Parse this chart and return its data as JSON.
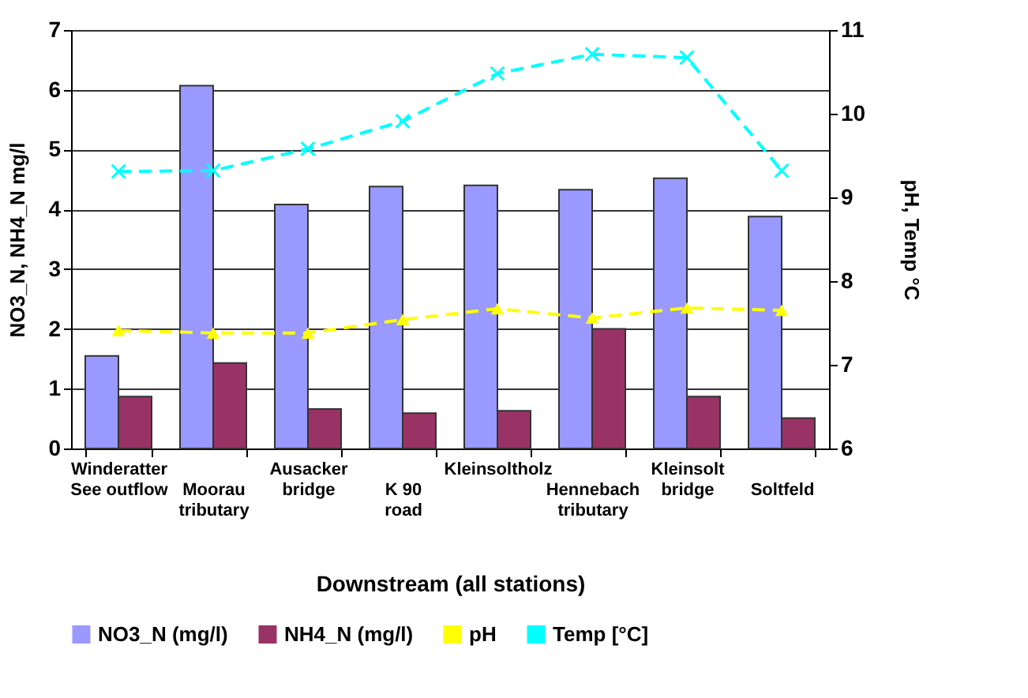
{
  "chart_data": {
    "type": "bar",
    "xlabel": "Downstream (all stations)",
    "ylabel": "NO3_N, NH4_N mg/l",
    "y2label": "pH, Temp °C",
    "categories": [
      "Winderatter\nSee outflow",
      "Moorau\ntributary",
      "Ausacker\nbridge",
      "K 90\nroad",
      "Kleinsoltholz",
      "Hennebach\ntributary",
      "Kleinsolt\nbridge",
      "Soltfeld"
    ],
    "series": [
      {
        "name": "NO3_N (mg/l)",
        "color": "#9999ff",
        "values": [
          1.55,
          6.07,
          4.08,
          4.38,
          4.4,
          4.33,
          4.52,
          3.88
        ]
      },
      {
        "name": "NH4_N (mg/l)",
        "color": "#993366",
        "values": [
          0.87,
          1.43,
          0.66,
          0.59,
          0.63,
          2.0,
          0.87,
          0.51
        ]
      },
      {
        "name": "pH",
        "type": "line",
        "axis": "y2",
        "color": "#ffff00",
        "marker": "triangle",
        "line_style": "dashed",
        "values": [
          7.41,
          7.38,
          7.38,
          7.54,
          7.67,
          7.56,
          7.68,
          7.65
        ]
      },
      {
        "name": "Temp [°C]",
        "type": "line",
        "axis": "y2",
        "color": "#00ffff",
        "marker": "cross",
        "line_style": "dashed",
        "values": [
          9.31,
          9.32,
          9.58,
          9.91,
          10.48,
          10.71,
          10.67,
          9.32
        ]
      }
    ],
    "ylim": [
      0,
      7
    ],
    "yticks": [
      0,
      1,
      2,
      3,
      4,
      5,
      6,
      7
    ],
    "y2lim": [
      6,
      11
    ],
    "y2ticks": [
      6,
      7,
      8,
      9,
      10,
      11
    ],
    "grid": "y",
    "legend": "bottom"
  }
}
